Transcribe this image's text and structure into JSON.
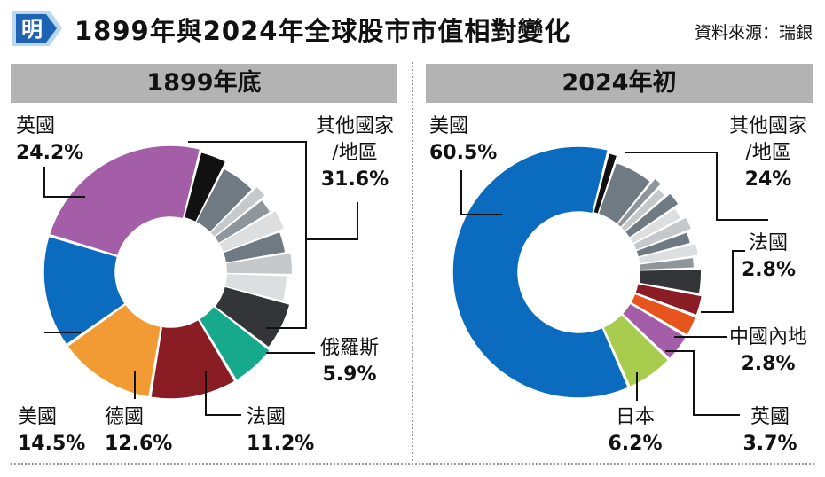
{
  "header": {
    "logo_char": "明",
    "title": "1899年與2024年全球股市市值相對變化",
    "source": "資料來源：瑞銀"
  },
  "colors": {
    "blue": "#0b6cbf",
    "purple": "#a45ea8",
    "orange": "#f29a33",
    "darkred": "#8a1c23",
    "teal": "#17a98c",
    "green": "#a8cc4e",
    "redorange": "#e8541d",
    "black": "#111111",
    "charcoal": "#333538",
    "slate": "#6f7a83",
    "grey": "#8e969c",
    "silver": "#c6c9cc",
    "lightgrey": "#dcdee0",
    "header_bg": "#b3b3b3"
  },
  "chart_data": [
    {
      "type": "pie",
      "title": "1899年底",
      "slices": [
        {
          "name": "其他國家/地區",
          "value": 31.6,
          "color_key": "black",
          "label": "31.6%"
        },
        {
          "name": "俄羅斯",
          "value": 5.9,
          "color_key": "teal",
          "label": "5.9%"
        },
        {
          "name": "法國",
          "value": 11.2,
          "color_key": "darkred",
          "label": "11.2%"
        },
        {
          "name": "德國",
          "value": 12.6,
          "color_key": "orange",
          "label": "12.6%"
        },
        {
          "name": "美國",
          "value": 14.5,
          "color_key": "blue",
          "label": "14.5%"
        },
        {
          "name": "英國",
          "value": 24.2,
          "color_key": "purple",
          "label": "24.2%"
        }
      ],
      "other_breakdown": [
        {
          "value": 3.6,
          "color_key": "black"
        },
        {
          "value": 5.0,
          "color_key": "slate"
        },
        {
          "value": 1.8,
          "color_key": "silver"
        },
        {
          "value": 2.2,
          "color_key": "grey"
        },
        {
          "value": 2.8,
          "color_key": "lightgrey"
        },
        {
          "value": 3.1,
          "color_key": "slate"
        },
        {
          "value": 3.0,
          "color_key": "silver"
        },
        {
          "value": 3.7,
          "color_key": "lightgrey"
        },
        {
          "value": 6.4,
          "color_key": "charcoal"
        }
      ]
    },
    {
      "type": "pie",
      "title": "2024年初",
      "slices": [
        {
          "name": "其他國家/地區",
          "value": 24,
          "color_key": "black",
          "label": "24%"
        },
        {
          "name": "法國",
          "value": 2.8,
          "color_key": "darkred",
          "label": "2.8%"
        },
        {
          "name": "中國內地",
          "value": 2.8,
          "color_key": "redorange",
          "label": "2.8%"
        },
        {
          "name": "英國",
          "value": 3.7,
          "color_key": "purple",
          "label": "3.7%"
        },
        {
          "name": "日本",
          "value": 6.2,
          "color_key": "green",
          "label": "6.2%"
        },
        {
          "name": "美國",
          "value": 60.5,
          "color_key": "blue",
          "label": "60.5%"
        }
      ],
      "other_breakdown": [
        {
          "value": 1.3,
          "color_key": "black"
        },
        {
          "value": 5.6,
          "color_key": "slate"
        },
        {
          "value": 1.3,
          "color_key": "grey"
        },
        {
          "value": 1.5,
          "color_key": "silver"
        },
        {
          "value": 2.0,
          "color_key": "slate"
        },
        {
          "value": 1.8,
          "color_key": "lightgrey"
        },
        {
          "value": 1.9,
          "color_key": "silver"
        },
        {
          "value": 1.8,
          "color_key": "slate"
        },
        {
          "value": 1.8,
          "color_key": "lightgrey"
        },
        {
          "value": 1.6,
          "color_key": "grey"
        },
        {
          "value": 3.4,
          "color_key": "charcoal"
        }
      ]
    }
  ]
}
